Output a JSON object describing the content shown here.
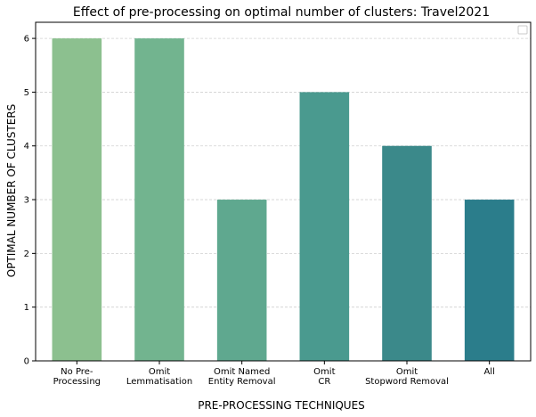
{
  "chart_data": {
    "type": "bar",
    "title": "Effect of pre-processing on optimal number of clusters: Travel2021",
    "xlabel": "PRE-PROCESSING TECHNIQUES",
    "ylabel": "OPTIMAL NUMBER OF CLUSTERS",
    "categories": [
      [
        "No Pre-",
        "Processing"
      ],
      [
        "Omit",
        "Lemmatisation"
      ],
      [
        "Omit Named",
        "Entity Removal"
      ],
      [
        "Omit",
        "CR"
      ],
      [
        "Omit",
        "Stopword Removal"
      ],
      [
        "All"
      ]
    ],
    "values": [
      6,
      6,
      3,
      5,
      4,
      3
    ],
    "colors": [
      "#8cc08f",
      "#72b48f",
      "#5fa88f",
      "#4a9a8f",
      "#3b898a",
      "#2b7d8b"
    ],
    "ylim": [
      0,
      6.3
    ],
    "yticks": [
      0,
      1,
      2,
      3,
      4,
      5,
      6
    ],
    "grid": "horizontal dashed",
    "legend": "top-right (empty)"
  }
}
